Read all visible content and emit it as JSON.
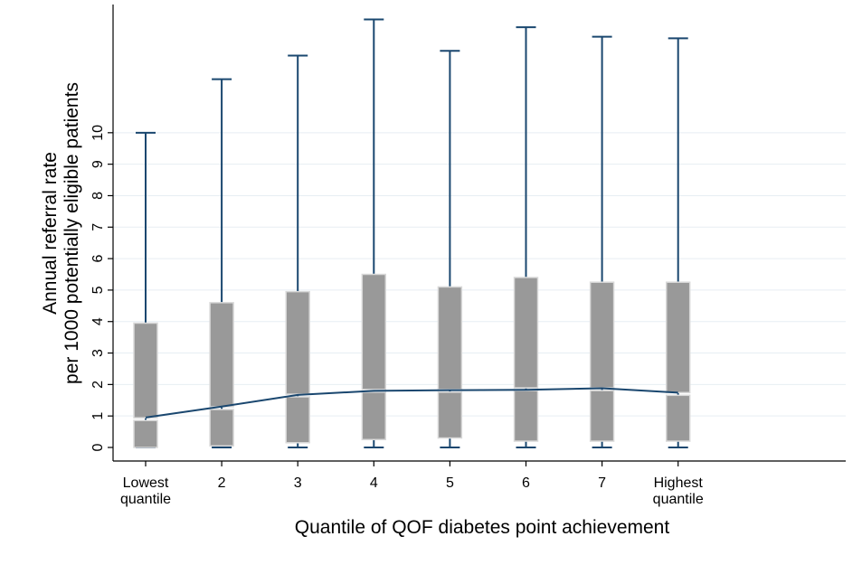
{
  "chart_data": {
    "type": "box",
    "title": "",
    "xlabel": "Quantile of QOF diabetes point achievement",
    "ylabel": "Annual referral rate per 1000 potentially eligible patients",
    "ylabel_lines": [
      "Annual referral rate",
      "per 1000 potentially eligible patients"
    ],
    "ylim": [
      0,
      13.7
    ],
    "yticks": [
      0,
      1,
      2,
      3,
      4,
      5,
      6,
      7,
      8,
      9,
      10
    ],
    "grid": true,
    "categories": [
      "Lowest quantile",
      "2",
      "3",
      "4",
      "5",
      "6",
      "7",
      "Highest quantile"
    ],
    "category_labels": [
      [
        "Lowest",
        "quantile"
      ],
      [
        "2"
      ],
      [
        "3"
      ],
      [
        "4"
      ],
      [
        "5"
      ],
      [
        "6"
      ],
      [
        "7"
      ],
      [
        "Highest",
        "quantile"
      ]
    ],
    "boxes": [
      {
        "min": 0,
        "q1": 0.0,
        "median": 0.9,
        "q3": 3.95,
        "max": 10.0
      },
      {
        "min": 0,
        "q1": 0.05,
        "median": 1.25,
        "q3": 4.6,
        "max": 11.7
      },
      {
        "min": 0,
        "q1": 0.15,
        "median": 1.65,
        "q3": 4.95,
        "max": 12.45
      },
      {
        "min": 0,
        "q1": 0.25,
        "median": 1.8,
        "q3": 5.5,
        "max": 13.6
      },
      {
        "min": 0,
        "q1": 0.3,
        "median": 1.8,
        "q3": 5.1,
        "max": 12.6
      },
      {
        "min": 0,
        "q1": 0.2,
        "median": 1.85,
        "q3": 5.4,
        "max": 13.35
      },
      {
        "min": 0,
        "q1": 0.2,
        "median": 1.85,
        "q3": 5.25,
        "max": 13.05
      },
      {
        "min": 0,
        "q1": 0.2,
        "median": 1.7,
        "q3": 5.25,
        "max": 13.0
      }
    ],
    "trend_line": [
      0.95,
      1.3,
      1.67,
      1.8,
      1.82,
      1.83,
      1.88,
      1.74
    ],
    "colors": {
      "box": "#999999",
      "box_border": "#d9d9d9",
      "whisker": "#1a476f",
      "trend": "#1a476f",
      "grid": "#e7eef3"
    }
  }
}
